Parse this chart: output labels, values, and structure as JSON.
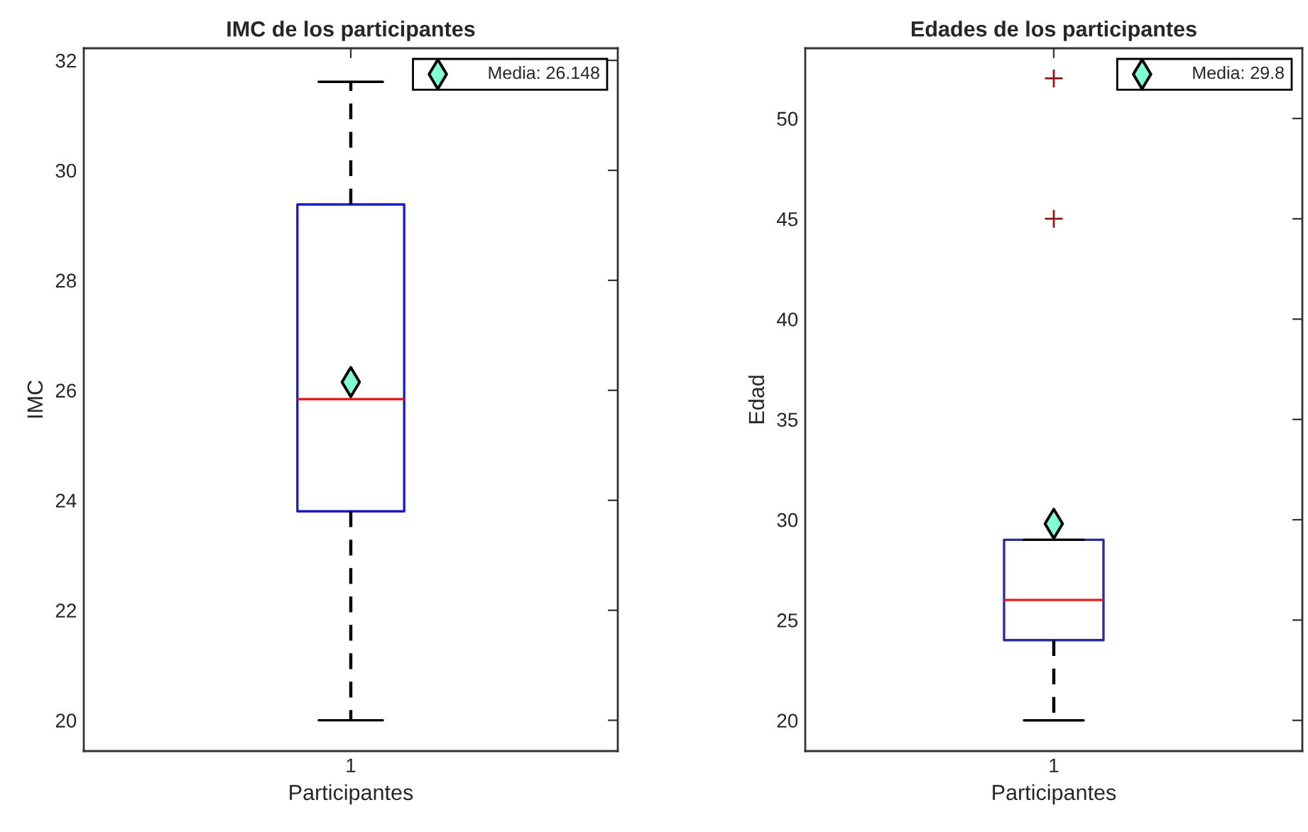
{
  "chart_data": [
    {
      "type": "box",
      "title": "IMC de los participantes",
      "xlabel": "Participantes",
      "ylabel": "IMC",
      "categories": [
        "1"
      ],
      "ylim": [
        19.44,
        32.22
      ],
      "yticks": [
        20,
        22,
        24,
        26,
        28,
        30,
        32
      ],
      "grid": false,
      "legend": "top right",
      "series": [
        {
          "color": "#1a1acc",
          "boxes": [
            {
              "low": 20,
              "q1": 23.8,
              "median": 25.84,
              "q3": 29.38,
              "high": 31.61
            }
          ]
        },
        {
          "type": "scatter",
          "name": "Media: 26.148",
          "color": "#7fffd4",
          "marker": "diamond",
          "x": [
            "1"
          ],
          "values": [
            26.15
          ]
        }
      ]
    },
    {
      "type": "box",
      "title": "Edades de los participantes",
      "xlabel": "Participantes",
      "ylabel": "Edad",
      "categories": [
        "1"
      ],
      "ylim": [
        18.47,
        53.5
      ],
      "yticks": [
        20,
        25,
        30,
        35,
        40,
        45,
        50
      ],
      "grid": false,
      "legend": "top right",
      "series": [
        {
          "color": "#2a2a99",
          "boxes": [
            {
              "low": 20,
              "q1": 24,
              "median": 26,
              "q3": 29,
              "high": 29,
              "outliers": [
                45,
                52
              ]
            }
          ]
        },
        {
          "type": "scatter",
          "name": "Media: 29.8",
          "color": "#7fffd4",
          "marker": "diamond",
          "x": [
            "1"
          ],
          "values": [
            29.8
          ]
        }
      ]
    }
  ]
}
